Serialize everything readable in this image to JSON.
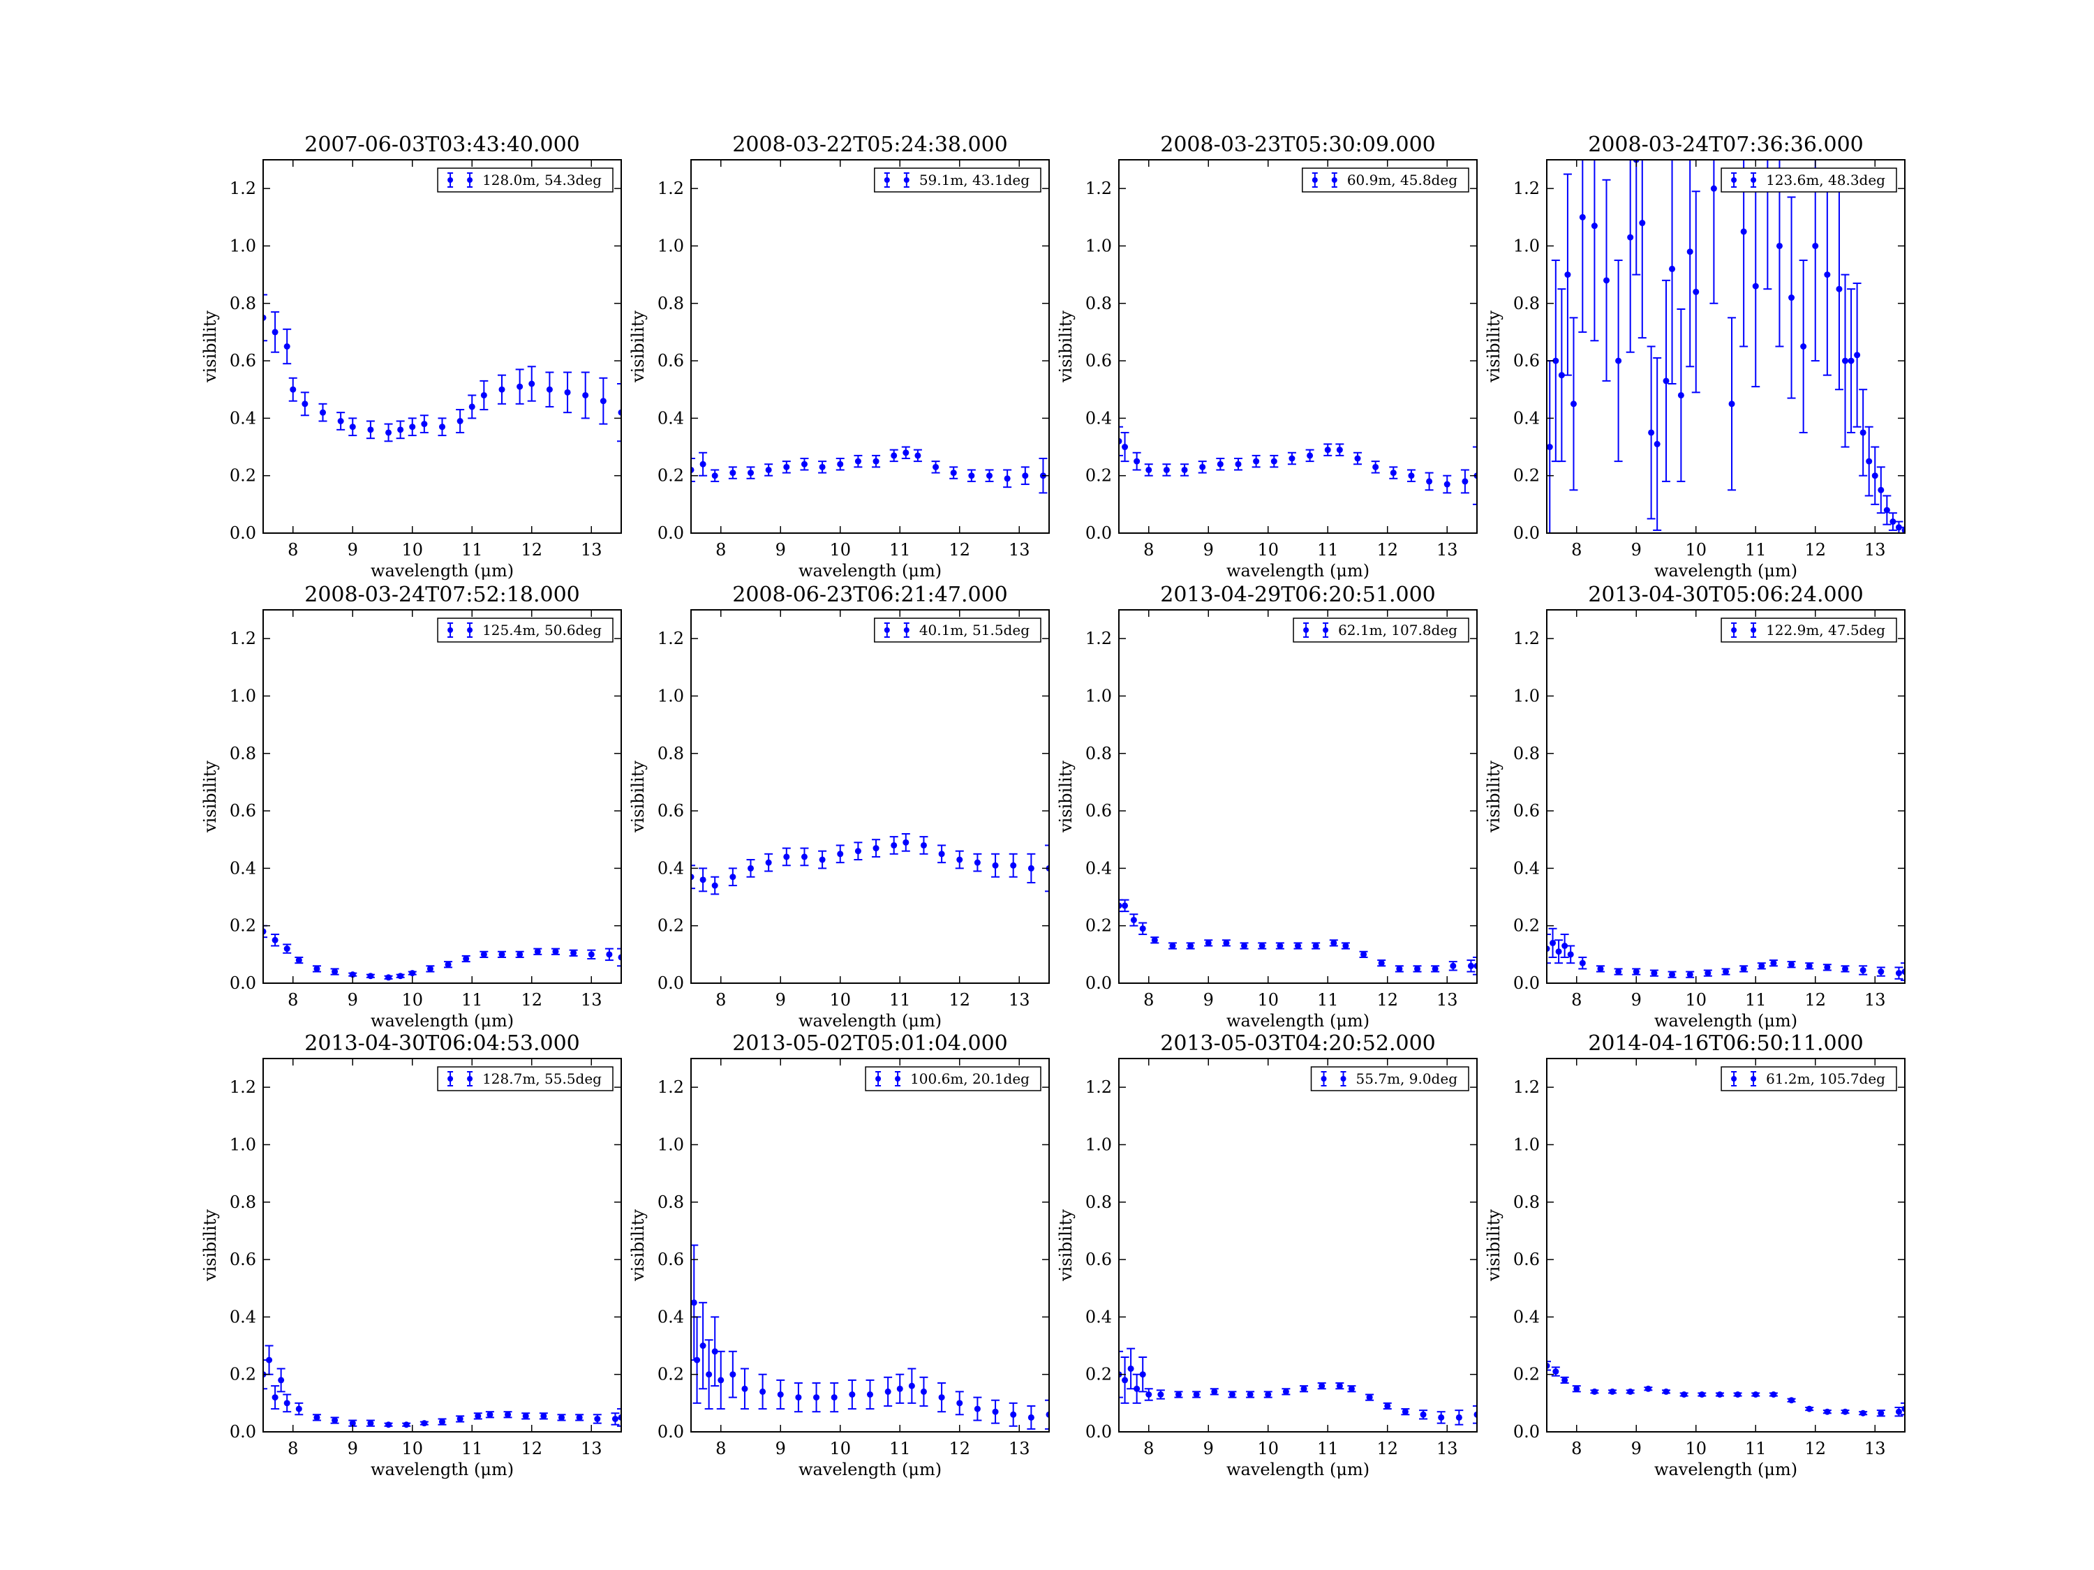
{
  "figure": {
    "series_color": "#0000ff",
    "xlabel": "wavelength (μm)",
    "ylabel": "visibility"
  },
  "chart_data": [
    {
      "type": "scatter",
      "title": "2007-06-03T03:43:40.000",
      "legend": "128.0m, 54.3deg",
      "legend_loc": "upper right",
      "xlabel": "wavelength (μm)",
      "ylabel": "visibility",
      "xlim": [
        7.5,
        13.5
      ],
      "ylim": [
        0.0,
        1.3
      ],
      "xticks": [
        8,
        9,
        10,
        11,
        12,
        13
      ],
      "yticks": [
        0.0,
        0.2,
        0.4,
        0.6,
        0.8,
        1.0,
        1.2
      ],
      "x": [
        7.5,
        7.7,
        7.9,
        8.0,
        8.2,
        8.5,
        8.8,
        9.0,
        9.3,
        9.6,
        9.8,
        10.0,
        10.2,
        10.5,
        10.8,
        11.0,
        11.2,
        11.5,
        11.8,
        12.0,
        12.3,
        12.6,
        12.9,
        13.2,
        13.5
      ],
      "values": [
        0.75,
        0.7,
        0.65,
        0.5,
        0.45,
        0.42,
        0.39,
        0.37,
        0.36,
        0.35,
        0.36,
        0.37,
        0.38,
        0.37,
        0.39,
        0.44,
        0.48,
        0.5,
        0.51,
        0.52,
        0.5,
        0.49,
        0.48,
        0.46,
        0.42
      ],
      "errors": [
        0.08,
        0.07,
        0.06,
        0.04,
        0.04,
        0.03,
        0.03,
        0.03,
        0.03,
        0.03,
        0.03,
        0.03,
        0.03,
        0.03,
        0.04,
        0.04,
        0.05,
        0.05,
        0.06,
        0.06,
        0.06,
        0.07,
        0.08,
        0.08,
        0.1
      ]
    },
    {
      "type": "scatter",
      "title": "2008-03-22T05:24:38.000",
      "legend": "59.1m, 43.1deg",
      "legend_loc": "upper right",
      "xlabel": "wavelength (μm)",
      "ylabel": "visibility",
      "xlim": [
        7.5,
        13.5
      ],
      "ylim": [
        0.0,
        1.3
      ],
      "xticks": [
        8,
        9,
        10,
        11,
        12,
        13
      ],
      "yticks": [
        0.0,
        0.2,
        0.4,
        0.6,
        0.8,
        1.0,
        1.2
      ],
      "x": [
        7.5,
        7.7,
        7.9,
        8.2,
        8.5,
        8.8,
        9.1,
        9.4,
        9.7,
        10.0,
        10.3,
        10.6,
        10.9,
        11.1,
        11.3,
        11.6,
        11.9,
        12.2,
        12.5,
        12.8,
        13.1,
        13.4
      ],
      "values": [
        0.22,
        0.24,
        0.2,
        0.21,
        0.21,
        0.22,
        0.23,
        0.24,
        0.23,
        0.24,
        0.25,
        0.25,
        0.27,
        0.28,
        0.27,
        0.23,
        0.21,
        0.2,
        0.2,
        0.19,
        0.2,
        0.2
      ],
      "errors": [
        0.04,
        0.04,
        0.02,
        0.02,
        0.02,
        0.02,
        0.02,
        0.02,
        0.02,
        0.02,
        0.02,
        0.02,
        0.02,
        0.02,
        0.02,
        0.02,
        0.02,
        0.02,
        0.02,
        0.03,
        0.03,
        0.06
      ]
    },
    {
      "type": "scatter",
      "title": "2008-03-23T05:30:09.000",
      "legend": "60.9m, 45.8deg",
      "legend_loc": "upper right",
      "xlabel": "wavelength (μm)",
      "ylabel": "visibility",
      "xlim": [
        7.5,
        13.5
      ],
      "ylim": [
        0.0,
        1.3
      ],
      "xticks": [
        8,
        9,
        10,
        11,
        12,
        13
      ],
      "yticks": [
        0.0,
        0.2,
        0.4,
        0.6,
        0.8,
        1.0,
        1.2
      ],
      "x": [
        7.5,
        7.6,
        7.8,
        8.0,
        8.3,
        8.6,
        8.9,
        9.2,
        9.5,
        9.8,
        10.1,
        10.4,
        10.7,
        11.0,
        11.2,
        11.5,
        11.8,
        12.1,
        12.4,
        12.7,
        13.0,
        13.3,
        13.5
      ],
      "values": [
        0.32,
        0.3,
        0.25,
        0.22,
        0.22,
        0.22,
        0.23,
        0.24,
        0.24,
        0.25,
        0.25,
        0.26,
        0.27,
        0.29,
        0.29,
        0.26,
        0.23,
        0.21,
        0.2,
        0.18,
        0.17,
        0.18,
        0.2
      ],
      "errors": [
        0.05,
        0.05,
        0.03,
        0.02,
        0.02,
        0.02,
        0.02,
        0.02,
        0.02,
        0.02,
        0.02,
        0.02,
        0.02,
        0.02,
        0.02,
        0.02,
        0.02,
        0.02,
        0.02,
        0.03,
        0.03,
        0.04,
        0.1
      ]
    },
    {
      "type": "scatter",
      "title": "2008-03-24T07:36:36.000",
      "legend": "123.6m, 48.3deg",
      "legend_loc": "upper right",
      "xlabel": "wavelength (μm)",
      "ylabel": "visibility",
      "xlim": [
        7.5,
        13.5
      ],
      "ylim": [
        0.0,
        1.3
      ],
      "xticks": [
        8,
        9,
        10,
        11,
        12,
        13
      ],
      "yticks": [
        0.0,
        0.2,
        0.4,
        0.6,
        0.8,
        1.0,
        1.2
      ],
      "x": [
        7.55,
        7.65,
        7.75,
        7.85,
        7.95,
        8.1,
        8.3,
        8.5,
        8.7,
        8.9,
        9.0,
        9.1,
        9.25,
        9.35,
        9.5,
        9.6,
        9.75,
        9.9,
        10.0,
        10.3,
        10.6,
        10.8,
        11.0,
        11.2,
        11.4,
        11.6,
        11.8,
        12.0,
        12.2,
        12.4,
        12.5,
        12.6,
        12.7,
        12.8,
        12.9,
        13.0,
        13.1,
        13.2,
        13.3,
        13.4,
        13.5
      ],
      "values": [
        0.3,
        0.6,
        0.55,
        0.9,
        0.45,
        1.1,
        1.07,
        0.88,
        0.6,
        1.03,
        1.3,
        1.08,
        0.35,
        0.31,
        0.53,
        0.92,
        0.48,
        0.98,
        0.84,
        1.2,
        0.45,
        1.05,
        0.86,
        1.25,
        1.0,
        0.82,
        0.65,
        1.0,
        0.9,
        0.85,
        0.6,
        0.6,
        0.62,
        0.35,
        0.25,
        0.2,
        0.15,
        0.08,
        0.04,
        0.02,
        0.01
      ],
      "errors": [
        0.3,
        0.35,
        0.3,
        0.35,
        0.3,
        0.4,
        0.4,
        0.35,
        0.35,
        0.4,
        0.4,
        0.4,
        0.3,
        0.3,
        0.35,
        0.4,
        0.3,
        0.4,
        0.35,
        0.4,
        0.3,
        0.4,
        0.35,
        0.4,
        0.35,
        0.35,
        0.3,
        0.4,
        0.35,
        0.35,
        0.3,
        0.25,
        0.25,
        0.15,
        0.12,
        0.1,
        0.08,
        0.05,
        0.03,
        0.02,
        0.01
      ]
    },
    {
      "type": "scatter",
      "title": "2008-03-24T07:52:18.000",
      "legend": "125.4m, 50.6deg",
      "legend_loc": "upper right",
      "xlabel": "wavelength (μm)",
      "ylabel": "visibility",
      "xlim": [
        7.5,
        13.5
      ],
      "ylim": [
        0.0,
        1.3
      ],
      "xticks": [
        8,
        9,
        10,
        11,
        12,
        13
      ],
      "yticks": [
        0.0,
        0.2,
        0.4,
        0.6,
        0.8,
        1.0,
        1.2
      ],
      "x": [
        7.5,
        7.7,
        7.9,
        8.1,
        8.4,
        8.7,
        9.0,
        9.3,
        9.6,
        9.8,
        10.0,
        10.3,
        10.6,
        10.9,
        11.2,
        11.5,
        11.8,
        12.1,
        12.4,
        12.7,
        13.0,
        13.3,
        13.5
      ],
      "values": [
        0.18,
        0.15,
        0.12,
        0.08,
        0.05,
        0.04,
        0.03,
        0.025,
        0.02,
        0.025,
        0.035,
        0.05,
        0.065,
        0.085,
        0.1,
        0.1,
        0.1,
        0.11,
        0.11,
        0.105,
        0.1,
        0.1,
        0.09
      ],
      "errors": [
        0.02,
        0.02,
        0.015,
        0.01,
        0.01,
        0.01,
        0.005,
        0.005,
        0.005,
        0.005,
        0.005,
        0.01,
        0.01,
        0.01,
        0.01,
        0.01,
        0.01,
        0.01,
        0.01,
        0.01,
        0.015,
        0.02,
        0.03
      ]
    },
    {
      "type": "scatter",
      "title": "2008-06-23T06:21:47.000",
      "legend": "40.1m, 51.5deg",
      "legend_loc": "upper right",
      "xlabel": "wavelength (μm)",
      "ylabel": "visibility",
      "xlim": [
        7.5,
        13.5
      ],
      "ylim": [
        0.0,
        1.3
      ],
      "xticks": [
        8,
        9,
        10,
        11,
        12,
        13
      ],
      "yticks": [
        0.0,
        0.2,
        0.4,
        0.6,
        0.8,
        1.0,
        1.2
      ],
      "x": [
        7.5,
        7.7,
        7.9,
        8.2,
        8.5,
        8.8,
        9.1,
        9.4,
        9.7,
        10.0,
        10.3,
        10.6,
        10.9,
        11.1,
        11.4,
        11.7,
        12.0,
        12.3,
        12.6,
        12.9,
        13.2,
        13.5
      ],
      "values": [
        0.37,
        0.36,
        0.34,
        0.37,
        0.4,
        0.42,
        0.44,
        0.44,
        0.43,
        0.45,
        0.46,
        0.47,
        0.48,
        0.49,
        0.48,
        0.45,
        0.43,
        0.42,
        0.41,
        0.41,
        0.4,
        0.4
      ],
      "errors": [
        0.04,
        0.04,
        0.03,
        0.03,
        0.03,
        0.03,
        0.03,
        0.03,
        0.03,
        0.03,
        0.03,
        0.03,
        0.03,
        0.03,
        0.03,
        0.03,
        0.03,
        0.03,
        0.04,
        0.04,
        0.05,
        0.08
      ]
    },
    {
      "type": "scatter",
      "title": "2013-04-29T06:20:51.000",
      "legend": "62.1m, 107.8deg",
      "legend_loc": "upper right",
      "xlabel": "wavelength (μm)",
      "ylabel": "visibility",
      "xlim": [
        7.5,
        13.5
      ],
      "ylim": [
        0.0,
        1.3
      ],
      "xticks": [
        8,
        9,
        10,
        11,
        12,
        13
      ],
      "yticks": [
        0.0,
        0.2,
        0.4,
        0.6,
        0.8,
        1.0,
        1.2
      ],
      "x": [
        7.5,
        7.6,
        7.75,
        7.9,
        8.1,
        8.4,
        8.7,
        9.0,
        9.3,
        9.6,
        9.9,
        10.2,
        10.5,
        10.8,
        11.1,
        11.3,
        11.6,
        11.9,
        12.2,
        12.5,
        12.8,
        13.1,
        13.4,
        13.5
      ],
      "values": [
        0.27,
        0.27,
        0.22,
        0.19,
        0.15,
        0.13,
        0.13,
        0.14,
        0.14,
        0.13,
        0.13,
        0.13,
        0.13,
        0.13,
        0.14,
        0.13,
        0.1,
        0.07,
        0.05,
        0.05,
        0.05,
        0.06,
        0.06,
        0.06
      ],
      "errors": [
        0.02,
        0.02,
        0.02,
        0.02,
        0.01,
        0.01,
        0.01,
        0.01,
        0.01,
        0.01,
        0.01,
        0.01,
        0.01,
        0.01,
        0.01,
        0.01,
        0.01,
        0.01,
        0.01,
        0.01,
        0.01,
        0.015,
        0.02,
        0.03
      ]
    },
    {
      "type": "scatter",
      "title": "2013-04-30T05:06:24.000",
      "legend": "122.9m, 47.5deg",
      "legend_loc": "upper right",
      "xlabel": "wavelength (μm)",
      "ylabel": "visibility",
      "xlim": [
        7.5,
        13.5
      ],
      "ylim": [
        0.0,
        1.3
      ],
      "xticks": [
        8,
        9,
        10,
        11,
        12,
        13
      ],
      "yticks": [
        0.0,
        0.2,
        0.4,
        0.6,
        0.8,
        1.0,
        1.2
      ],
      "x": [
        7.5,
        7.6,
        7.7,
        7.8,
        7.9,
        8.1,
        8.4,
        8.7,
        9.0,
        9.3,
        9.6,
        9.9,
        10.2,
        10.5,
        10.8,
        11.1,
        11.3,
        11.6,
        11.9,
        12.2,
        12.5,
        12.8,
        13.1,
        13.4,
        13.5
      ],
      "values": [
        0.12,
        0.14,
        0.11,
        0.13,
        0.1,
        0.07,
        0.05,
        0.04,
        0.04,
        0.035,
        0.03,
        0.03,
        0.035,
        0.04,
        0.05,
        0.06,
        0.07,
        0.065,
        0.06,
        0.055,
        0.05,
        0.045,
        0.04,
        0.035,
        0.04
      ],
      "errors": [
        0.05,
        0.05,
        0.04,
        0.04,
        0.03,
        0.02,
        0.01,
        0.01,
        0.01,
        0.01,
        0.01,
        0.01,
        0.01,
        0.01,
        0.01,
        0.01,
        0.01,
        0.01,
        0.01,
        0.01,
        0.01,
        0.015,
        0.015,
        0.02,
        0.03
      ]
    },
    {
      "type": "scatter",
      "title": "2013-04-30T06:04:53.000",
      "legend": "128.7m, 55.5deg",
      "legend_loc": "upper right",
      "xlabel": "wavelength (μm)",
      "ylabel": "visibility",
      "xlim": [
        7.5,
        13.5
      ],
      "ylim": [
        0.0,
        1.3
      ],
      "xticks": [
        8,
        9,
        10,
        11,
        12,
        13
      ],
      "yticks": [
        0.0,
        0.2,
        0.4,
        0.6,
        0.8,
        1.0,
        1.2
      ],
      "x": [
        7.5,
        7.6,
        7.7,
        7.8,
        7.9,
        8.1,
        8.4,
        8.7,
        9.0,
        9.3,
        9.6,
        9.9,
        10.2,
        10.5,
        10.8,
        11.1,
        11.3,
        11.6,
        11.9,
        12.2,
        12.5,
        12.8,
        13.1,
        13.4,
        13.5
      ],
      "values": [
        0.2,
        0.25,
        0.12,
        0.18,
        0.1,
        0.08,
        0.05,
        0.04,
        0.03,
        0.03,
        0.025,
        0.025,
        0.03,
        0.035,
        0.045,
        0.055,
        0.06,
        0.06,
        0.055,
        0.055,
        0.05,
        0.05,
        0.045,
        0.045,
        0.05
      ],
      "errors": [
        0.05,
        0.05,
        0.04,
        0.04,
        0.03,
        0.02,
        0.01,
        0.01,
        0.01,
        0.01,
        0.005,
        0.005,
        0.005,
        0.01,
        0.01,
        0.01,
        0.01,
        0.01,
        0.01,
        0.01,
        0.01,
        0.01,
        0.015,
        0.02,
        0.03
      ]
    },
    {
      "type": "scatter",
      "title": "2013-05-02T05:01:04.000",
      "legend": "100.6m, 20.1deg",
      "legend_loc": "upper right",
      "xlabel": "wavelength (μm)",
      "ylabel": "visibility",
      "xlim": [
        7.5,
        13.5
      ],
      "ylim": [
        0.0,
        1.3
      ],
      "xticks": [
        8,
        9,
        10,
        11,
        12,
        13
      ],
      "yticks": [
        0.0,
        0.2,
        0.4,
        0.6,
        0.8,
        1.0,
        1.2
      ],
      "x": [
        7.55,
        7.6,
        7.7,
        7.8,
        7.9,
        8.0,
        8.2,
        8.4,
        8.7,
        9.0,
        9.3,
        9.6,
        9.9,
        10.2,
        10.5,
        10.8,
        11.0,
        11.2,
        11.4,
        11.7,
        12.0,
        12.3,
        12.6,
        12.9,
        13.2,
        13.5
      ],
      "values": [
        0.45,
        0.25,
        0.3,
        0.2,
        0.28,
        0.18,
        0.2,
        0.15,
        0.14,
        0.13,
        0.12,
        0.12,
        0.12,
        0.13,
        0.13,
        0.14,
        0.15,
        0.16,
        0.14,
        0.12,
        0.1,
        0.08,
        0.07,
        0.06,
        0.05,
        0.06
      ],
      "errors": [
        0.2,
        0.15,
        0.15,
        0.12,
        0.12,
        0.1,
        0.08,
        0.07,
        0.06,
        0.05,
        0.05,
        0.05,
        0.05,
        0.05,
        0.05,
        0.05,
        0.05,
        0.06,
        0.05,
        0.05,
        0.04,
        0.04,
        0.04,
        0.04,
        0.04,
        0.05
      ]
    },
    {
      "type": "scatter",
      "title": "2013-05-03T04:20:52.000",
      "legend": "55.7m, 9.0deg",
      "legend_loc": "upper right",
      "xlabel": "wavelength (μm)",
      "ylabel": "visibility",
      "xlim": [
        7.5,
        13.5
      ],
      "ylim": [
        0.0,
        1.3
      ],
      "xticks": [
        8,
        9,
        10,
        11,
        12,
        13
      ],
      "yticks": [
        0.0,
        0.2,
        0.4,
        0.6,
        0.8,
        1.0,
        1.2
      ],
      "x": [
        7.5,
        7.6,
        7.7,
        7.8,
        7.9,
        8.0,
        8.2,
        8.5,
        8.8,
        9.1,
        9.4,
        9.7,
        10.0,
        10.3,
        10.6,
        10.9,
        11.2,
        11.4,
        11.7,
        12.0,
        12.3,
        12.6,
        12.9,
        13.2,
        13.5
      ],
      "values": [
        0.2,
        0.18,
        0.22,
        0.15,
        0.2,
        0.13,
        0.13,
        0.13,
        0.13,
        0.14,
        0.13,
        0.13,
        0.13,
        0.14,
        0.15,
        0.16,
        0.16,
        0.15,
        0.12,
        0.09,
        0.07,
        0.06,
        0.05,
        0.05,
        0.06
      ],
      "errors": [
        0.08,
        0.08,
        0.07,
        0.05,
        0.06,
        0.02,
        0.015,
        0.01,
        0.01,
        0.01,
        0.01,
        0.01,
        0.01,
        0.01,
        0.01,
        0.01,
        0.01,
        0.01,
        0.01,
        0.01,
        0.01,
        0.015,
        0.02,
        0.025,
        0.03
      ]
    },
    {
      "type": "scatter",
      "title": "2014-04-16T06:50:11.000",
      "legend": "61.2m, 105.7deg",
      "legend_loc": "upper right",
      "xlabel": "wavelength (μm)",
      "ylabel": "visibility",
      "xlim": [
        7.5,
        13.5
      ],
      "ylim": [
        0.0,
        1.3
      ],
      "xticks": [
        8,
        9,
        10,
        11,
        12,
        13
      ],
      "yticks": [
        0.0,
        0.2,
        0.4,
        0.6,
        0.8,
        1.0,
        1.2
      ],
      "x": [
        7.5,
        7.65,
        7.8,
        8.0,
        8.3,
        8.6,
        8.9,
        9.2,
        9.5,
        9.8,
        10.1,
        10.4,
        10.7,
        11.0,
        11.3,
        11.6,
        11.9,
        12.2,
        12.5,
        12.8,
        13.1,
        13.4,
        13.5
      ],
      "values": [
        0.23,
        0.21,
        0.18,
        0.15,
        0.14,
        0.14,
        0.14,
        0.15,
        0.14,
        0.13,
        0.13,
        0.13,
        0.13,
        0.13,
        0.13,
        0.11,
        0.08,
        0.07,
        0.07,
        0.065,
        0.065,
        0.07,
        0.08
      ],
      "errors": [
        0.015,
        0.015,
        0.01,
        0.01,
        0.005,
        0.005,
        0.005,
        0.005,
        0.005,
        0.005,
        0.005,
        0.005,
        0.005,
        0.005,
        0.005,
        0.005,
        0.005,
        0.005,
        0.005,
        0.005,
        0.01,
        0.015,
        0.02
      ]
    }
  ]
}
